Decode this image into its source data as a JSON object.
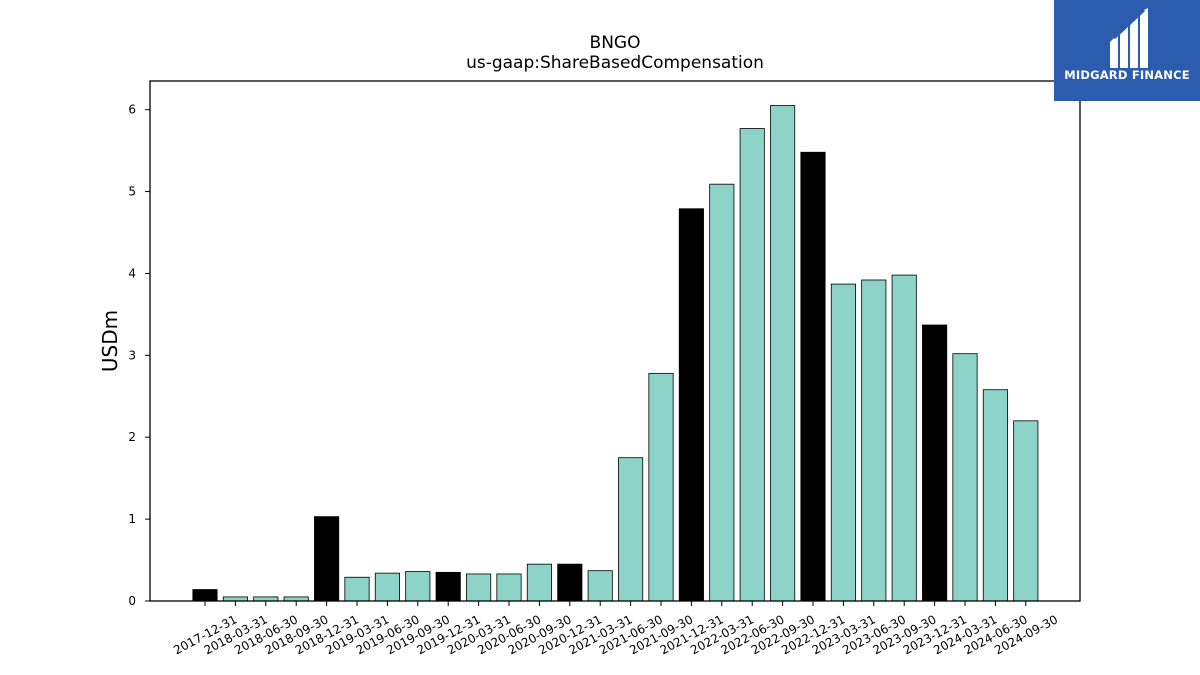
{
  "logo": {
    "text": "MIDGARD FINANCE"
  },
  "chart_data": {
    "type": "bar",
    "title": "BNGO",
    "subtitle": "us-gaap:ShareBasedCompensation",
    "xlabel": "",
    "ylabel": "USDm",
    "ylim": [
      0,
      6.35
    ],
    "yticks": [
      0,
      1,
      2,
      3,
      4,
      5,
      6
    ],
    "grid": false,
    "colors": {
      "quarterly": "#8dd3c7",
      "annual": "#000000",
      "edge": "#000000"
    },
    "categories": [
      "2017-12-31",
      "2018-03-31",
      "2018-06-30",
      "2018-09-30",
      "2018-12-31",
      "2019-03-31",
      "2019-06-30",
      "2019-09-30",
      "2019-12-31",
      "2020-03-31",
      "2020-06-30",
      "2020-09-30",
      "2020-12-31",
      "2021-03-31",
      "2021-06-30",
      "2021-09-30",
      "2021-12-31",
      "2022-03-31",
      "2022-06-30",
      "2022-09-30",
      "2022-12-31",
      "2023-03-31",
      "2023-06-30",
      "2023-09-30",
      "2023-12-31",
      "2024-03-31",
      "2024-06-30",
      "2024-09-30"
    ],
    "values": [
      0.14,
      0.05,
      0.05,
      0.05,
      1.03,
      0.29,
      0.34,
      0.36,
      0.35,
      0.33,
      0.33,
      0.45,
      0.45,
      0.37,
      1.75,
      2.78,
      4.79,
      5.09,
      5.77,
      6.05,
      5.48,
      3.87,
      3.92,
      3.98,
      3.37,
      3.02,
      2.58,
      2.2
    ],
    "annual": [
      true,
      false,
      false,
      false,
      true,
      false,
      false,
      false,
      true,
      false,
      false,
      false,
      true,
      false,
      false,
      false,
      true,
      false,
      false,
      false,
      true,
      false,
      false,
      false,
      true,
      false,
      false,
      false
    ]
  }
}
